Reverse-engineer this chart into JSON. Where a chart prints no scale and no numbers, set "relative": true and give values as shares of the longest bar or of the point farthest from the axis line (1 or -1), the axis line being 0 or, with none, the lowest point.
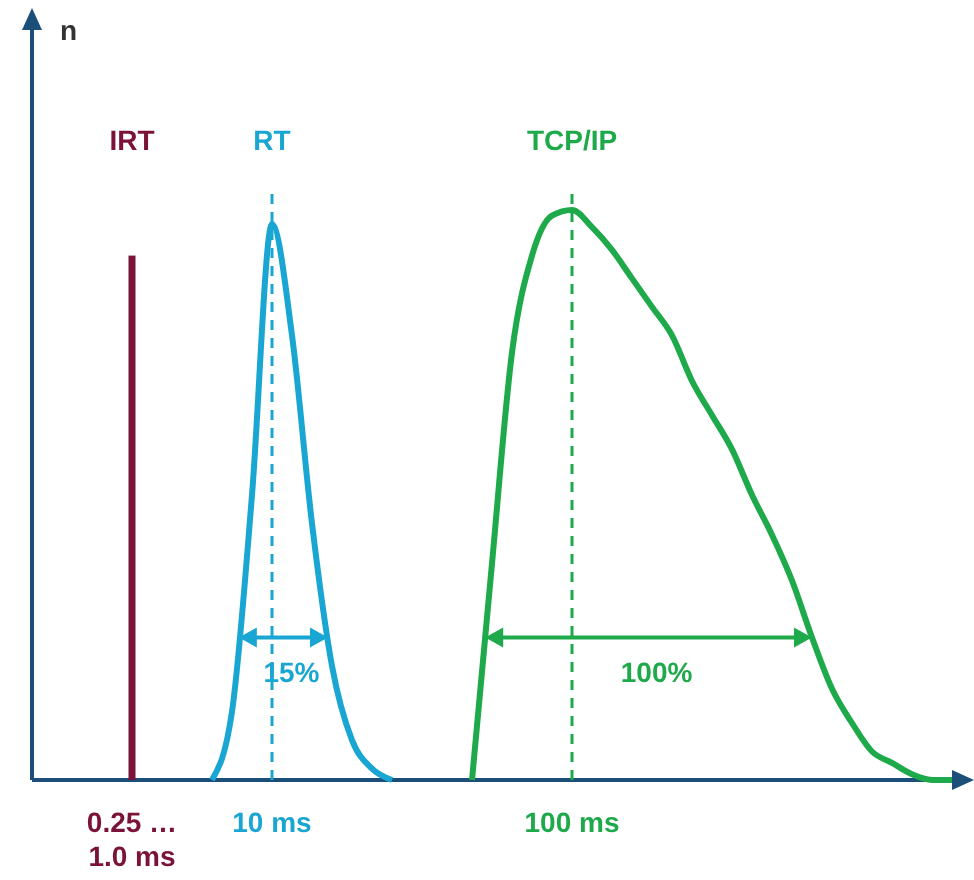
{
  "chart_data": {
    "type": "line",
    "relative": true,
    "tick_labels": "x",
    "line_style": "solid",
    "categories": [
      null,
      null,
      null,
      null,
      null,
      "0.25 …\n1.0 ms",
      null,
      null,
      null,
      null,
      null,
      null,
      "10 ms",
      null,
      null,
      null,
      null,
      null,
      null,
      null,
      null,
      null,
      null,
      null,
      null,
      null,
      null,
      "100 ms",
      null,
      null,
      null,
      null,
      null,
      null,
      null,
      null,
      null,
      null,
      null,
      null,
      null,
      null,
      null,
      null,
      null,
      null,
      null
    ],
    "series": [
      {
        "name": "IRT",
        "type": "bar",
        "color": "#7b1238",
        "values": [
          null,
          null,
          null,
          null,
          null,
          0.92,
          null,
          null,
          null,
          null,
          null,
          null,
          null,
          null,
          null,
          null,
          null,
          null,
          null,
          null,
          null,
          null,
          null,
          null,
          null,
          null,
          null,
          null,
          null,
          null,
          null,
          null,
          null,
          null,
          null,
          null,
          null,
          null,
          null,
          null,
          null,
          null,
          null,
          null,
          null,
          null,
          null
        ]
      },
      {
        "name": "RT",
        "color": "#1aa6d2",
        "values": [
          null,
          null,
          null,
          null,
          null,
          null,
          null,
          null,
          null,
          0,
          0.12,
          0.5,
          0.975,
          0.78,
          0.45,
          0.2,
          0.07,
          0.02,
          0,
          null,
          null,
          null,
          null,
          null,
          null,
          null,
          null,
          null,
          null,
          null,
          null,
          null,
          null,
          null,
          null,
          null,
          null,
          null,
          null,
          null,
          null,
          null,
          null,
          null,
          null,
          null,
          null
        ]
      },
      {
        "name": "TCP/IP",
        "color": "#1eaa4a",
        "values": [
          null,
          null,
          null,
          null,
          null,
          null,
          null,
          null,
          null,
          null,
          null,
          null,
          null,
          null,
          null,
          null,
          null,
          null,
          null,
          null,
          null,
          null,
          0,
          0.38,
          0.75,
          0.92,
          0.99,
          1,
          0.97,
          0.93,
          0.88,
          0.83,
          0.78,
          0.7,
          0.64,
          0.58,
          0.5,
          0.43,
          0.35,
          0.25,
          0.16,
          0.1,
          0.05,
          0.03,
          0.01,
          0,
          0
        ]
      }
    ],
    "ref_lines": [
      {
        "axis": "x",
        "value": "10 ms",
        "color": "#1aa6d2",
        "line_style": "dashed"
      },
      {
        "axis": "x",
        "value": "100 ms",
        "color": "#1eaa4a",
        "line_style": "dashed"
      }
    ],
    "annotations": [
      "n",
      "15%",
      "100%"
    ]
  }
}
